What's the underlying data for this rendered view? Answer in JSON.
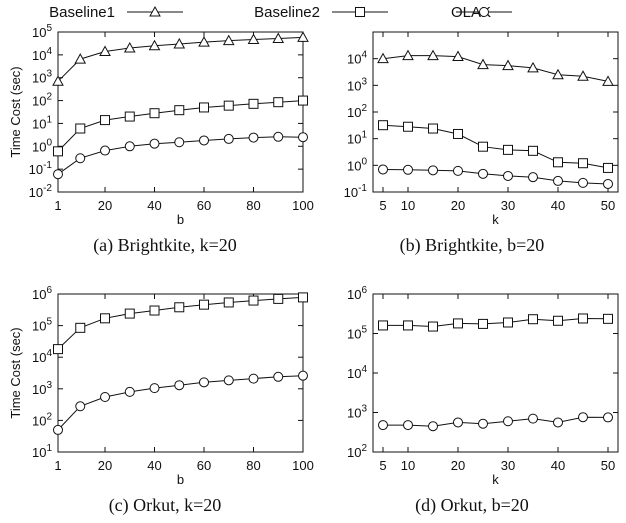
{
  "legend": [
    {
      "name": "Baseline1",
      "marker": "triangle"
    },
    {
      "name": "Baseline2",
      "marker": "square"
    },
    {
      "name": "OLAK",
      "marker": "circle"
    }
  ],
  "chart_data": [
    {
      "type": "line",
      "caption": "(a) Brightkite, k=20",
      "xlabel": "b",
      "ylabel": "Time Cost (sec)",
      "x_scale": "linear",
      "y_scale": "log",
      "xlim": [
        1,
        100
      ],
      "ylim": [
        0.01,
        100000
      ],
      "x_ticks": [
        1,
        20,
        40,
        60,
        80,
        100
      ],
      "y_ticks": [
        {
          "v": 0.01,
          "base": "10",
          "exp": "-2"
        },
        {
          "v": 0.1,
          "base": "10",
          "exp": "-1"
        },
        {
          "v": 1,
          "base": "10",
          "exp": "0"
        },
        {
          "v": 10,
          "base": "10",
          "exp": "1"
        },
        {
          "v": 100,
          "base": "10",
          "exp": "2"
        },
        {
          "v": 1000,
          "base": "10",
          "exp": "3"
        },
        {
          "v": 10000,
          "base": "10",
          "exp": "4"
        },
        {
          "v": 100000,
          "base": "10",
          "exp": "5"
        }
      ],
      "x": [
        1,
        10,
        20,
        30,
        40,
        50,
        60,
        70,
        80,
        90,
        100
      ],
      "series": [
        {
          "name": "Baseline1",
          "marker": "triangle",
          "values": [
            700,
            6500,
            14000,
            20000,
            25000,
            30000,
            36000,
            42000,
            47000,
            52000,
            58000
          ]
        },
        {
          "name": "Baseline2",
          "marker": "square",
          "values": [
            0.6,
            6,
            14,
            20,
            28,
            38,
            50,
            60,
            72,
            85,
            100
          ]
        },
        {
          "name": "OLAK",
          "marker": "circle",
          "values": [
            0.06,
            0.3,
            0.65,
            1.0,
            1.3,
            1.5,
            1.8,
            2.1,
            2.4,
            2.6,
            2.5
          ]
        }
      ]
    },
    {
      "type": "line",
      "caption": "(b) Brightkite, b=20",
      "xlabel": "k",
      "ylabel": "",
      "x_scale": "linear",
      "y_scale": "log",
      "xlim": [
        3,
        52
      ],
      "ylim": [
        0.1,
        100000
      ],
      "x_ticks": [
        5,
        10,
        20,
        30,
        40,
        50
      ],
      "y_ticks": [
        {
          "v": 0.1,
          "base": "10",
          "exp": "-1"
        },
        {
          "v": 1,
          "base": "10",
          "exp": "0"
        },
        {
          "v": 10,
          "base": "10",
          "exp": "1"
        },
        {
          "v": 100,
          "base": "10",
          "exp": "2"
        },
        {
          "v": 1000,
          "base": "10",
          "exp": "3"
        },
        {
          "v": 10000,
          "base": "10",
          "exp": "4"
        }
      ],
      "x": [
        5,
        10,
        15,
        20,
        25,
        30,
        35,
        40,
        45,
        50
      ],
      "series": [
        {
          "name": "Baseline1",
          "marker": "triangle",
          "values": [
            10000,
            13000,
            13000,
            12000,
            6000,
            5500,
            4500,
            2500,
            2200,
            1400
          ]
        },
        {
          "name": "Baseline2",
          "marker": "square",
          "values": [
            32,
            28,
            24,
            15,
            5,
            3.8,
            3.5,
            1.3,
            1.2,
            0.8
          ]
        },
        {
          "name": "OLAK",
          "marker": "circle",
          "values": [
            0.7,
            0.68,
            0.65,
            0.62,
            0.48,
            0.4,
            0.36,
            0.26,
            0.22,
            0.2
          ]
        }
      ]
    },
    {
      "type": "line",
      "caption": "(c) Orkut, k=20",
      "xlabel": "b",
      "ylabel": "Time Cost (sec)",
      "x_scale": "linear",
      "y_scale": "log",
      "xlim": [
        1,
        100
      ],
      "ylim": [
        10,
        1000000
      ],
      "x_ticks": [
        1,
        20,
        40,
        60,
        80,
        100
      ],
      "y_ticks": [
        {
          "v": 10,
          "base": "10",
          "exp": "1"
        },
        {
          "v": 100,
          "base": "10",
          "exp": "2"
        },
        {
          "v": 1000,
          "base": "10",
          "exp": "3"
        },
        {
          "v": 10000,
          "base": "10",
          "exp": "4"
        },
        {
          "v": 100000,
          "base": "10",
          "exp": "5"
        },
        {
          "v": 1000000,
          "base": "10",
          "exp": "6"
        }
      ],
      "x": [
        1,
        10,
        20,
        30,
        40,
        50,
        60,
        70,
        80,
        90,
        100
      ],
      "series": [
        {
          "name": "Baseline2",
          "marker": "square",
          "values": [
            18000,
            85000,
            170000,
            240000,
            300000,
            380000,
            460000,
            540000,
            620000,
            700000,
            780000
          ]
        },
        {
          "name": "OLAK",
          "marker": "circle",
          "values": [
            50,
            280,
            550,
            800,
            1050,
            1300,
            1600,
            1850,
            2100,
            2400,
            2600
          ]
        }
      ]
    },
    {
      "type": "line",
      "caption": "(d) Orkut, b=20",
      "xlabel": "k",
      "ylabel": "",
      "x_scale": "linear",
      "y_scale": "log",
      "xlim": [
        3,
        52
      ],
      "ylim": [
        100,
        1000000
      ],
      "x_ticks": [
        5,
        10,
        20,
        30,
        40,
        50
      ],
      "y_ticks": [
        {
          "v": 100,
          "base": "10",
          "exp": "2"
        },
        {
          "v": 1000,
          "base": "10",
          "exp": "3"
        },
        {
          "v": 10000,
          "base": "10",
          "exp": "4"
        },
        {
          "v": 100000,
          "base": "10",
          "exp": "5"
        },
        {
          "v": 1000000,
          "base": "10",
          "exp": "6"
        }
      ],
      "x": [
        5,
        10,
        15,
        20,
        25,
        30,
        35,
        40,
        45,
        50
      ],
      "series": [
        {
          "name": "Baseline2",
          "marker": "square",
          "values": [
            160000,
            160000,
            150000,
            180000,
            175000,
            190000,
            230000,
            210000,
            240000,
            235000
          ]
        },
        {
          "name": "OLAK",
          "marker": "circle",
          "values": [
            480,
            480,
            450,
            560,
            520,
            600,
            700,
            560,
            760,
            750
          ]
        }
      ]
    }
  ]
}
